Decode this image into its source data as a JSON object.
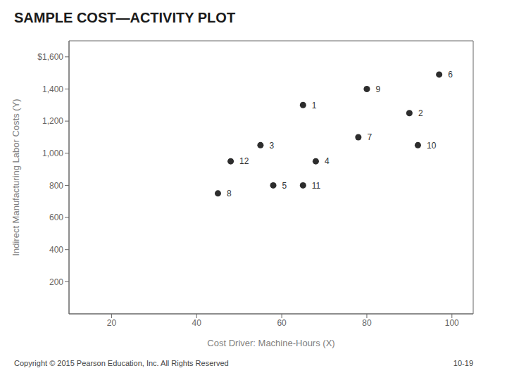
{
  "chart_data": {
    "type": "scatter",
    "title": "SAMPLE COST—ACTIVITY PLOT",
    "x_label": "Cost Driver: Machine-Hours (X)",
    "y_label": "Indirect Manufacturing Labor Costs (Y)",
    "x": [
      65,
      90,
      55,
      68,
      58,
      97,
      78,
      45,
      80,
      92,
      65,
      48
    ],
    "values": [
      1300,
      1250,
      1050,
      950,
      800,
      1490,
      1100,
      750,
      1400,
      1050,
      800,
      950
    ],
    "labels": [
      "1",
      "2",
      "3",
      "4",
      "5",
      "6",
      "7",
      "8",
      "9",
      "10",
      "11",
      "12"
    ],
    "xlim": [
      10,
      105
    ],
    "ylim": [
      0,
      1700
    ],
    "xticks": [
      20,
      40,
      60,
      80,
      100
    ],
    "yticks": [
      200,
      400,
      600,
      800,
      {
        "value": 1000,
        "label": "1,000"
      },
      {
        "value": 1200,
        "label": "1,200"
      },
      {
        "value": 1400,
        "label": "1,400"
      },
      {
        "value": 1600,
        "label": "$1,600"
      }
    ],
    "color": "#2d2d2d",
    "grid": false,
    "annotations": [
      "Copyright © 2015 Pearson Education, Inc. All Rights Reserved",
      "10-19"
    ]
  }
}
